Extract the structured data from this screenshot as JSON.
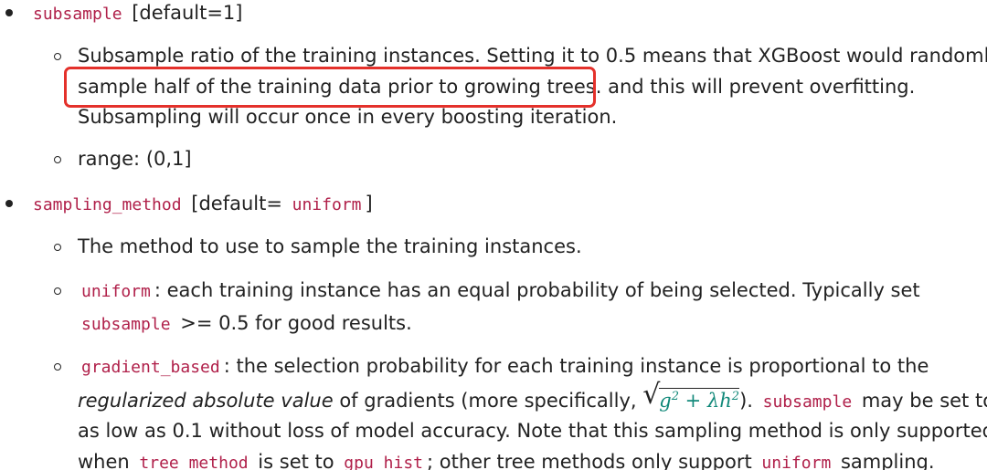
{
  "subsample": {
    "name": "subsample",
    "default": "[default=1]",
    "desc_line1": "Subsample ratio of the training instances. Setting it to 0.5 means that XGBoost would randomly",
    "desc_line2_highlighted": "sample half of the training data prior to growing trees.",
    "desc_line2_rest": " and this will prevent overfitting.",
    "desc_line3": "Subsampling will occur once in every boosting iteration.",
    "range": "range: (0,1]"
  },
  "sampling_method": {
    "name": "sampling_method",
    "default_prefix": "[default=",
    "default_value": "uniform",
    "default_suffix": "]",
    "desc": "The method to use to sample the training instances.",
    "uniform": {
      "name": "uniform",
      "text1": ": each training instance has an equal probability of being selected. Typically set",
      "code2": "subsample",
      "text2": " >= 0.5 for good results."
    },
    "gradient_based": {
      "name": "gradient_based",
      "text1": ": the selection probability for each training instance is proportional to the",
      "line2_em": "regularized absolute value",
      "line2_text": " of gradients (more specifically, ",
      "math_g": "g",
      "math_g_sup": "2",
      "math_plus": " + ",
      "math_lambda_h": "λh",
      "math_h_sup": "2",
      "line2_after_math": ").",
      "line2_code": "subsample",
      "line2_end": " may be set to",
      "line3": "as low as 0.1 without loss of model accuracy. Note that this sampling method is only supported",
      "line4_pre": "when",
      "line4_code1": "tree_method",
      "line4_mid": " is set to",
      "line4_code2": "gpu_hist",
      "line4_mid2": "; other tree methods only support",
      "line4_code3": "uniform",
      "line4_end": " sampling."
    }
  },
  "colors": {
    "code": "#b0204a",
    "highlight_border": "#e4312b",
    "math": "#12897a",
    "text": "#222222"
  }
}
